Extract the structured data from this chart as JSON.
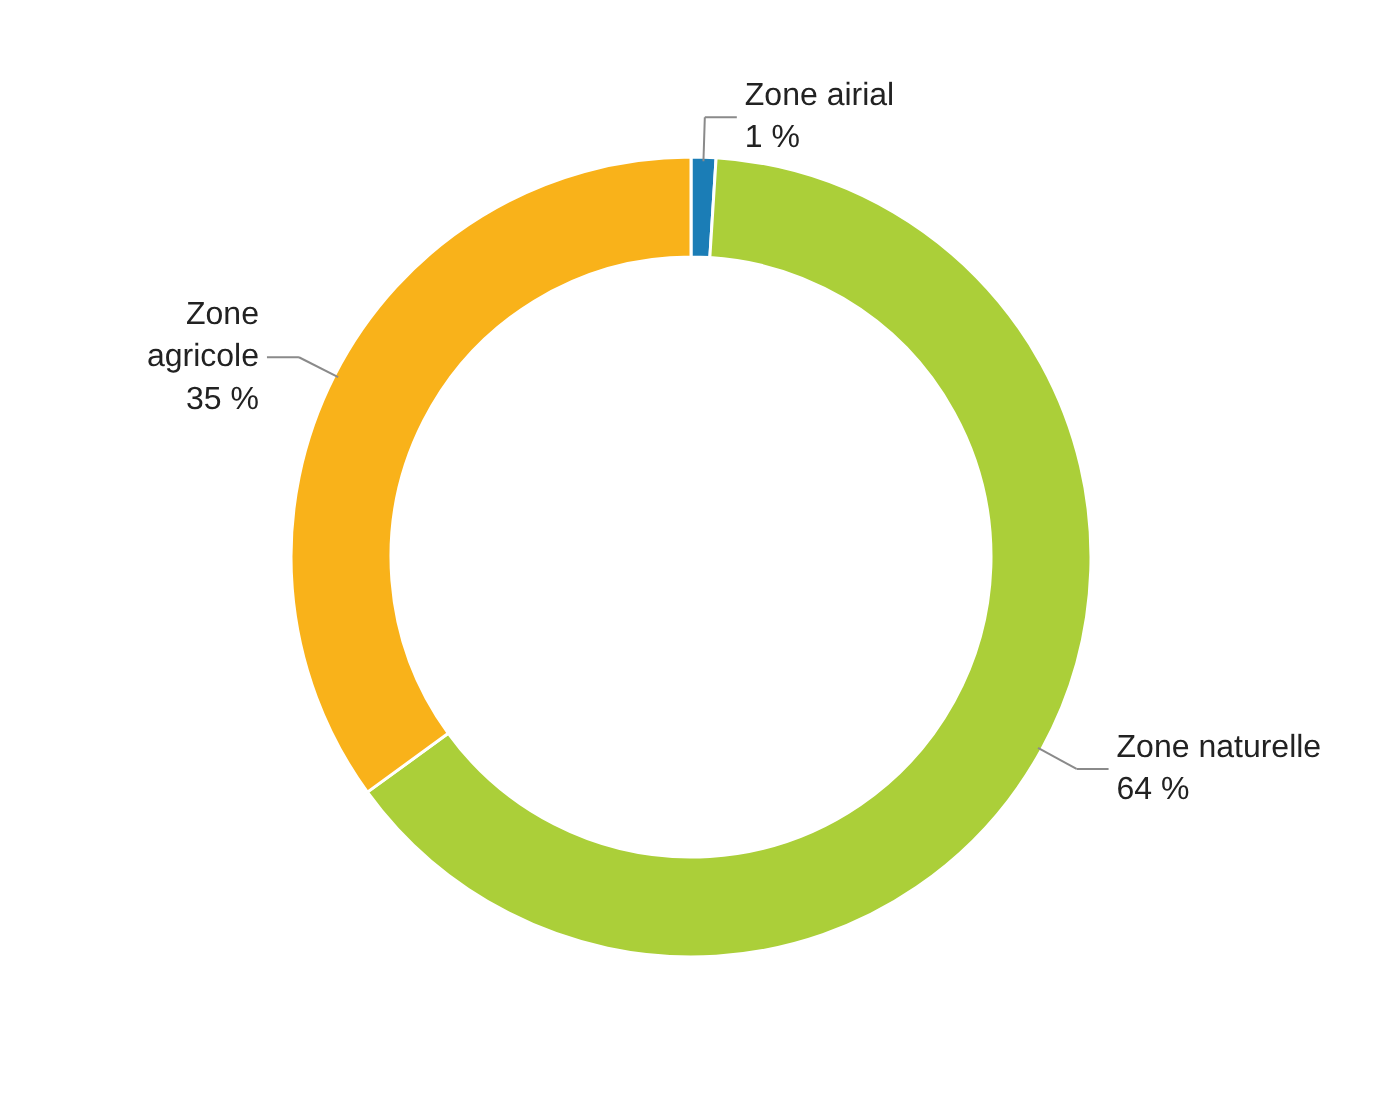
{
  "chart_data": {
    "type": "donut",
    "categories": [
      "Zone airial",
      "Zone naturelle",
      "Zone agricole"
    ],
    "values": [
      1,
      64,
      35
    ],
    "colors": [
      "#1b7db6",
      "#abcf39",
      "#f9b21a"
    ],
    "value_labels": [
      "1 %",
      "64 %",
      "35 %"
    ]
  }
}
